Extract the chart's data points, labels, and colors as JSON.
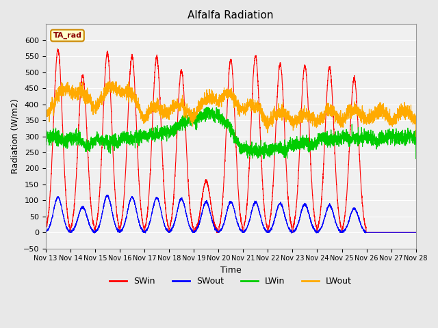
{
  "title": "Alfalfa Radiation",
  "xlabel": "Time",
  "ylabel": "Radiation (W/m2)",
  "ylim": [
    -50,
    650
  ],
  "xlim": [
    0,
    15
  ],
  "fig_bg": "#e8e8e8",
  "plot_bg": "#f0f0f0",
  "legend_label": "TA_rad",
  "colors": {
    "SWin": "#ff0000",
    "SWout": "#0000ff",
    "LWin": "#00cc00",
    "LWout": "#ffaa00"
  },
  "x_tick_labels": [
    "Nov 13",
    "Nov 14",
    "Nov 15",
    "Nov 16",
    "Nov 17",
    "Nov 18",
    "Nov 19",
    "Nov 20",
    "Nov 21",
    "Nov 22",
    "Nov 23",
    "Nov 24",
    "Nov 25",
    "Nov 26",
    "Nov 27",
    "Nov 28"
  ],
  "x_tick_positions": [
    0,
    1,
    2,
    3,
    4,
    5,
    6,
    7,
    8,
    9,
    10,
    11,
    12,
    13,
    14,
    15
  ],
  "swin_peaks": [
    570,
    490,
    560,
    550,
    545,
    505,
    160,
    540,
    550,
    525,
    520,
    515,
    480,
    0
  ],
  "swout_peaks": [
    110,
    80,
    115,
    110,
    108,
    105,
    95,
    95,
    95,
    90,
    88,
    85,
    75,
    0
  ],
  "lwin_day_vals": [
    300,
    290,
    280,
    290,
    300,
    315,
    360,
    370,
    260,
    255,
    270,
    285,
    295,
    295,
    295
  ],
  "lwout_day_vals": [
    340,
    420,
    360,
    430,
    330,
    355,
    340,
    395,
    360,
    325,
    320,
    325,
    330,
    330,
    330
  ]
}
